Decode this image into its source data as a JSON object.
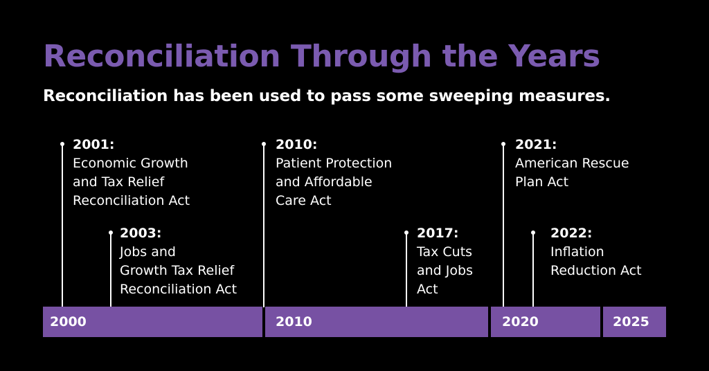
{
  "title": "Reconciliation Through the Years",
  "subtitle": "Reconciliation has been used to pass some sweeping measures.",
  "colors": {
    "background": "#000000",
    "title": "#7b5bb0",
    "axis": "#7751a3",
    "text": "#ffffff"
  },
  "events": [
    {
      "year": "2001:",
      "label": "Economic Growth\nand Tax Relief\nReconciliation Act"
    },
    {
      "year": "2003:",
      "label": "Jobs and\nGrowth Tax Relief\nReconciliation Act"
    },
    {
      "year": "2010:",
      "label": "Patient Protection\nand Affordable\nCare Act"
    },
    {
      "year": "2017:",
      "label": "Tax Cuts\nand Jobs\nAct"
    },
    {
      "year": "2021:",
      "label": "American Rescue\nPlan Act"
    },
    {
      "year": "2022:",
      "label": "Inflation\nReduction Act"
    }
  ],
  "axis": {
    "labels": [
      "2000",
      "2010",
      "2020",
      "2025"
    ]
  }
}
